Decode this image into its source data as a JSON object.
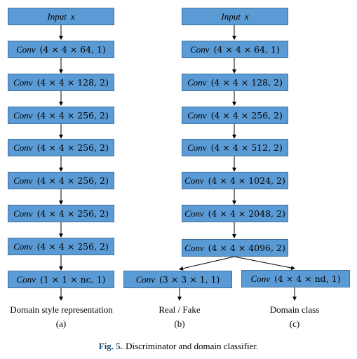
{
  "colA": {
    "input_label": "Input",
    "input_var": "x",
    "layers": [
      {
        "op": "Conv",
        "args": "(4 × 4 × 64, 1)"
      },
      {
        "op": "Conv",
        "args": "(4 × 4 × 128, 2)"
      },
      {
        "op": "Conv",
        "args": "(4 × 4 × 256, 2)"
      },
      {
        "op": "Conv",
        "args": "(4 × 4 × 256, 2)"
      },
      {
        "op": "Conv",
        "args": "(4 × 4 × 256, 2)"
      },
      {
        "op": "Conv",
        "args": "(4 × 4 × 256, 2)"
      },
      {
        "op": "Conv",
        "args": "(4 × 4 × 256, 2)"
      },
      {
        "op": "Conv",
        "args": "(1 × 1 × nc, 1)"
      }
    ],
    "output": "Domain style representation",
    "tag": "(a)"
  },
  "colB": {
    "input_label": "Input",
    "input_var": "x",
    "layers": [
      {
        "op": "Conv",
        "args": "(4 × 4 × 64, 1)"
      },
      {
        "op": "Conv",
        "args": "(4 × 4 × 128, 2)"
      },
      {
        "op": "Conv",
        "args": "(4 × 4 × 256, 2)"
      },
      {
        "op": "Conv",
        "args": "(4 × 4 × 512, 2)"
      },
      {
        "op": "Conv",
        "args": "(4 × 4 × 1024, 2)"
      },
      {
        "op": "Conv",
        "args": "(4 × 4 × 2048, 2)"
      },
      {
        "op": "Conv",
        "args": "(4 × 4 × 4096, 2)"
      }
    ],
    "branch_left": {
      "op": "Conv",
      "args": "(3 × 3 × 1, 1)",
      "output": "Real / Fake",
      "tag": "(b)"
    },
    "branch_right": {
      "op": "Conv",
      "args": "(4 × 4 × nd, 1)",
      "output": "Domain class",
      "tag": "(c)"
    }
  },
  "caption": {
    "fig": "Fig. 5.",
    "text": "Discriminator and domain classifier."
  }
}
